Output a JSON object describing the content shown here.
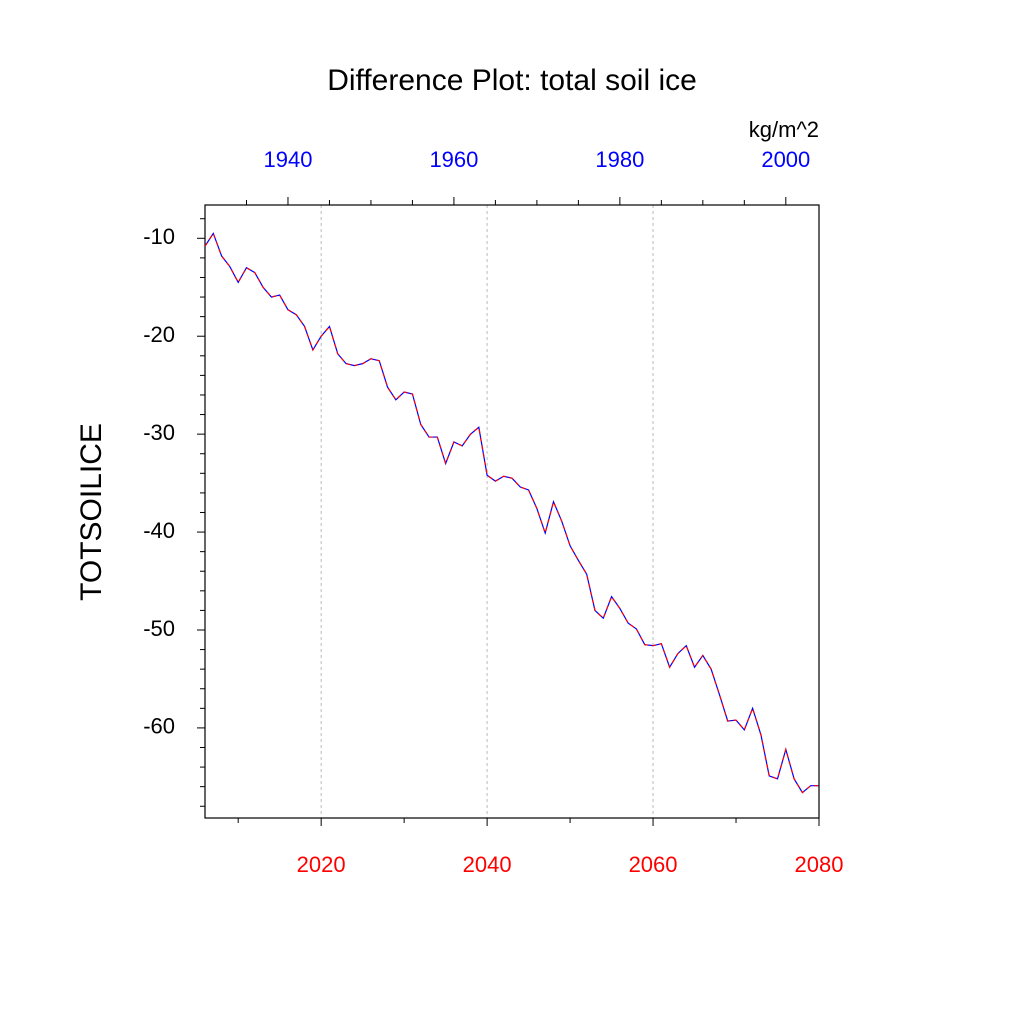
{
  "chart_data": {
    "type": "line",
    "title": "Difference Plot: total soil ice",
    "units": "kg/m^2",
    "y_label": "TOTSOILICE",
    "x": [
      2006,
      2007,
      2008,
      2009,
      2010,
      2011,
      2012,
      2013,
      2014,
      2015,
      2016,
      2017,
      2018,
      2019,
      2020,
      2021,
      2022,
      2023,
      2024,
      2025,
      2026,
      2027,
      2028,
      2029,
      2030,
      2031,
      2032,
      2033,
      2034,
      2035,
      2036,
      2037,
      2038,
      2039,
      2040,
      2041,
      2042,
      2043,
      2044,
      2045,
      2046,
      2047,
      2048,
      2049,
      2050,
      2051,
      2052,
      2053,
      2054,
      2055,
      2056,
      2057,
      2058,
      2059,
      2060,
      2061,
      2062,
      2063,
      2064,
      2065,
      2066,
      2067,
      2068,
      2069,
      2070,
      2071,
      2072,
      2073,
      2074,
      2075,
      2076,
      2077,
      2078,
      2079,
      2080
    ],
    "series": [
      {
        "color": "#0000ff",
        "dash_color": "#ff0000",
        "values": [
          -10.8,
          -9.5,
          -11.8,
          -12.9,
          -14.5,
          -13.0,
          -13.5,
          -15.0,
          -16.0,
          -15.8,
          -17.3,
          -17.8,
          -19.0,
          -21.4,
          -20.0,
          -19.0,
          -21.8,
          -22.8,
          -23.0,
          -22.8,
          -22.3,
          -22.5,
          -25.2,
          -26.5,
          -25.7,
          -25.9,
          -29.0,
          -30.3,
          -30.3,
          -33.0,
          -30.8,
          -31.2,
          -30.0,
          -29.3,
          -34.2,
          -34.8,
          -34.3,
          -34.5,
          -35.4,
          -35.7,
          -37.6,
          -40.1,
          -36.9,
          -38.9,
          -41.4,
          -42.9,
          -44.3,
          -48.0,
          -48.8,
          -46.6,
          -47.8,
          -49.3,
          -49.9,
          -51.5,
          -51.6,
          -51.4,
          -53.8,
          -52.4,
          -51.6,
          -53.8,
          -52.6,
          -54.0,
          -56.6,
          -59.3,
          -59.2,
          -60.2,
          -58.0,
          -60.7,
          -64.9,
          -65.2,
          -62.2,
          -65.2,
          -66.6,
          -65.9,
          -65.9
        ]
      }
    ],
    "xlim": [
      2006,
      2080
    ],
    "xticks": [
      2020,
      2040,
      2060,
      2080
    ],
    "xminorticks": [
      2010,
      2030,
      2050,
      2070
    ],
    "xtick_color": "#ff0000",
    "x2lim": [
      1930,
      2004
    ],
    "x2ticks": [
      1940,
      1960,
      1980,
      2000
    ],
    "x2minorticks": [
      1935,
      1945,
      1950,
      1955,
      1965,
      1970,
      1975,
      1985,
      1990,
      1995
    ],
    "x2tick_color": "#0000ff",
    "ylim": [
      -69.2,
      -6.6
    ],
    "yticks": [
      -10,
      -20,
      -30,
      -40,
      -50,
      -60
    ],
    "yminorticks": [
      -68,
      -66,
      -64,
      -62,
      -58,
      -56,
      -54,
      -52,
      -48,
      -46,
      -44,
      -42,
      -38,
      -36,
      -34,
      -32,
      -28,
      -26,
      -24,
      -22,
      -18,
      -16,
      -14,
      -12,
      -8
    ],
    "grid": true
  }
}
